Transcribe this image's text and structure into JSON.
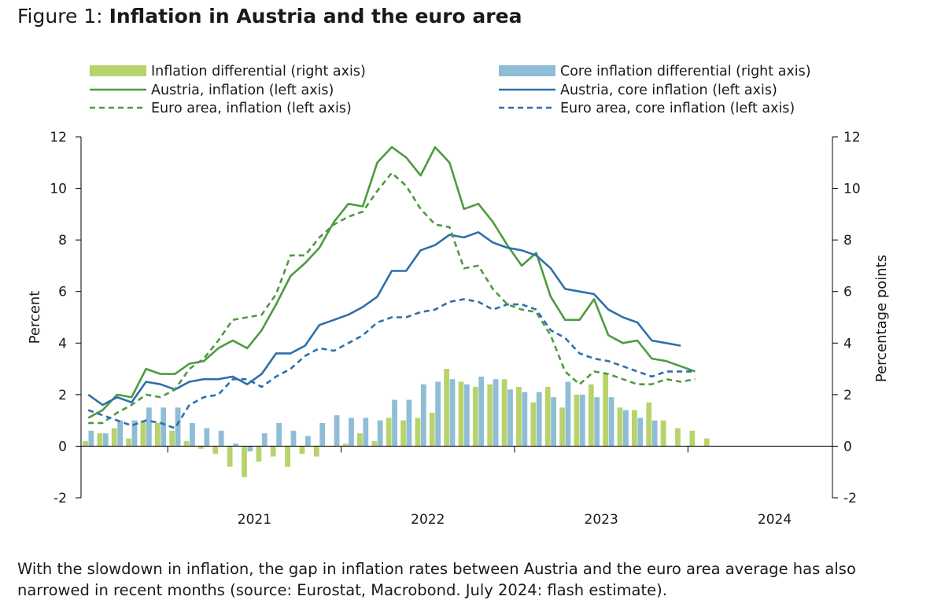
{
  "figure": {
    "prefix": "Figure 1: ",
    "title": "Inflation in Austria and the euro area",
    "caption": "With the slowdown in inflation, the gap in inflation rates between Austria and the euro area average has also narrowed in recent months (source: Eurostat, Macrobond. July 2024: flash estimate)."
  },
  "chart_data": {
    "type": "bar+line",
    "ylabel_left": "Percent",
    "ylabel_right": "Percentage points",
    "ylim": [
      -2,
      12
    ],
    "yticks": [
      -2,
      0,
      2,
      4,
      6,
      8,
      10,
      12
    ],
    "x_start": "2020-07",
    "x_end": "2024-10",
    "year_labels": [
      {
        "label": "2021",
        "x": "2021-01"
      },
      {
        "label": "2022",
        "x": "2022-01"
      },
      {
        "label": "2023",
        "x": "2023-01"
      },
      {
        "label": "2024",
        "x": "2024-01"
      }
    ],
    "legend_position": "top",
    "bars": [
      {
        "name": "Inflation differential (right axis)",
        "color": "#b9d36c",
        "axis": "right",
        "start": "2020-07",
        "values": [
          0.2,
          0.5,
          0.7,
          0.3,
          1.0,
          0.9,
          0.6,
          0.2,
          -0.1,
          -0.3,
          -0.8,
          -1.2,
          -0.6,
          -0.4,
          -0.8,
          -0.3,
          -0.4,
          0.0,
          0.1,
          0.5,
          0.2,
          1.1,
          1.0,
          1.1,
          1.3,
          3.0,
          2.5,
          2.3,
          2.4,
          2.6,
          2.3,
          1.7,
          2.3,
          1.5,
          2.0,
          2.4,
          2.8,
          1.5,
          1.4,
          1.7,
          1.0,
          0.7,
          0.6,
          0.3
        ]
      },
      {
        "name": "Core inflation differential (right axis)",
        "color": "#8fbdd6",
        "axis": "right",
        "start": "2020-07",
        "values": [
          0.6,
          0.5,
          1.0,
          1.0,
          1.5,
          1.5,
          1.5,
          0.9,
          0.7,
          0.6,
          0.1,
          -0.2,
          0.5,
          0.9,
          0.6,
          0.4,
          0.9,
          1.2,
          1.1,
          1.1,
          1.0,
          1.8,
          1.8,
          2.4,
          2.5,
          2.6,
          2.4,
          2.7,
          2.6,
          2.2,
          2.1,
          2.1,
          1.9,
          2.5,
          2.0,
          1.9,
          1.9,
          1.4,
          1.1,
          1.0
        ]
      }
    ],
    "series": [
      {
        "name": "Austria, inflation (left axis)",
        "color": "#4e9a40",
        "dash": "solid",
        "start": "2020-07",
        "values": [
          1.1,
          1.4,
          2.0,
          1.9,
          3.0,
          2.8,
          2.8,
          3.2,
          3.3,
          3.8,
          4.1,
          3.8,
          4.5,
          5.5,
          6.6,
          7.1,
          7.7,
          8.7,
          9.4,
          9.3,
          11.0,
          11.6,
          11.2,
          10.5,
          11.6,
          11.0,
          9.2,
          9.4,
          8.7,
          7.8,
          7.0,
          7.5,
          5.8,
          4.9,
          4.9,
          5.7,
          4.3,
          4.0,
          4.1,
          3.4,
          3.3,
          3.1,
          2.9
        ]
      },
      {
        "name": "Austria, core inflation (left axis)",
        "color": "#2f6fac",
        "dash": "solid",
        "start": "2020-07",
        "values": [
          2.0,
          1.6,
          1.9,
          1.7,
          2.5,
          2.4,
          2.2,
          2.5,
          2.6,
          2.6,
          2.7,
          2.4,
          2.8,
          3.6,
          3.6,
          3.9,
          4.7,
          4.9,
          5.1,
          5.4,
          5.8,
          6.8,
          6.8,
          7.6,
          7.8,
          8.2,
          8.1,
          8.3,
          7.9,
          7.7,
          7.6,
          7.4,
          6.9,
          6.1,
          6.0,
          5.9,
          5.3,
          5.0,
          4.8,
          4.1,
          4.0,
          3.9
        ]
      },
      {
        "name": "Euro area, inflation (left axis)",
        "color": "#4e9a40",
        "dash": "dashed",
        "start": "2020-07",
        "values": [
          0.9,
          0.9,
          1.3,
          1.6,
          2.0,
          1.9,
          2.2,
          3.0,
          3.4,
          4.1,
          4.9,
          5.0,
          5.1,
          5.9,
          7.4,
          7.4,
          8.1,
          8.6,
          8.9,
          9.1,
          9.9,
          10.6,
          10.1,
          9.2,
          8.6,
          8.5,
          6.9,
          7.0,
          6.1,
          5.5,
          5.3,
          5.2,
          4.3,
          2.9,
          2.4,
          2.9,
          2.8,
          2.6,
          2.4,
          2.4,
          2.6,
          2.5,
          2.6
        ]
      },
      {
        "name": "Euro area, core inflation (left axis)",
        "color": "#2f6fac",
        "dash": "dashed",
        "start": "2020-07",
        "values": [
          1.4,
          1.2,
          1.0,
          0.8,
          1.0,
          0.9,
          0.7,
          1.6,
          1.9,
          2.0,
          2.6,
          2.6,
          2.3,
          2.7,
          3.0,
          3.5,
          3.8,
          3.7,
          4.0,
          4.3,
          4.8,
          5.0,
          5.0,
          5.2,
          5.3,
          5.6,
          5.7,
          5.6,
          5.3,
          5.5,
          5.5,
          5.3,
          4.5,
          4.2,
          3.6,
          3.4,
          3.3,
          3.1,
          2.9,
          2.7,
          2.9,
          2.9,
          2.9
        ]
      }
    ]
  }
}
